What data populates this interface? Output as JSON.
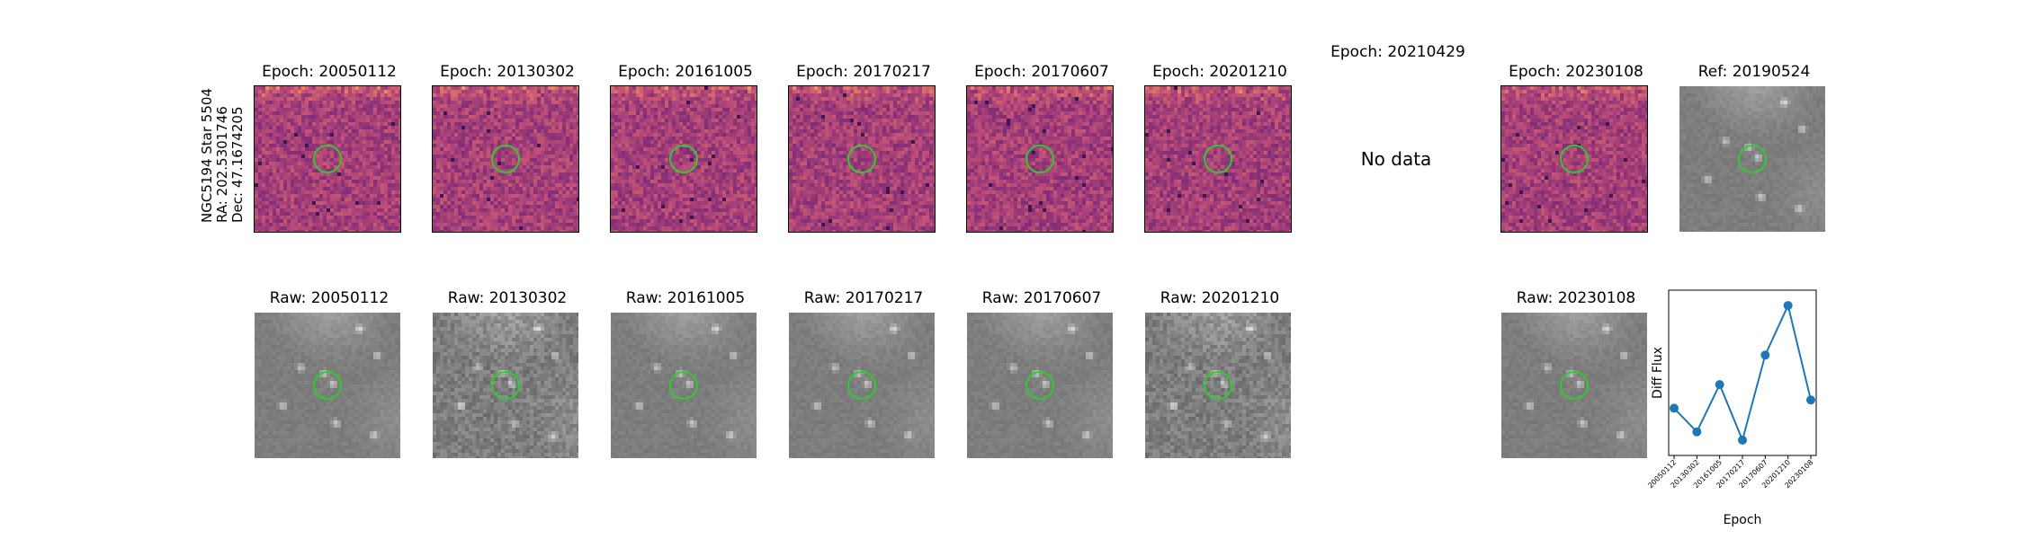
{
  "object": {
    "line1": "NGC5194 Star 5504",
    "line2": "RA: 202.5301746",
    "line3": "Dec: 47.1674205"
  },
  "diff_row": [
    {
      "label": "Epoch: 20050112",
      "kind": "diff"
    },
    {
      "label": "Epoch: 20130302",
      "kind": "diff"
    },
    {
      "label": "Epoch: 20161005",
      "kind": "diff"
    },
    {
      "label": "Epoch: 20170217",
      "kind": "diff"
    },
    {
      "label": "Epoch: 20170607",
      "kind": "diff"
    },
    {
      "label": "Epoch: 20201210",
      "kind": "diff"
    },
    {
      "label": "Epoch: 20210429",
      "kind": "nodata",
      "message": "No data"
    },
    {
      "label": "Epoch: 20230108",
      "kind": "diff"
    },
    {
      "label": "Ref: 20190524",
      "kind": "raw"
    }
  ],
  "raw_row": [
    {
      "label": "Raw: 20050112"
    },
    {
      "label": "Raw: 20130302"
    },
    {
      "label": "Raw: 20161005"
    },
    {
      "label": "Raw: 20170217"
    },
    {
      "label": "Raw: 20170607"
    },
    {
      "label": "Raw: 20201210"
    },
    {
      "label": "Raw: 20230108"
    }
  ],
  "colors": {
    "diff_base": "#b04a7c",
    "raw_base": "#8a8a8a",
    "aperture": "#2ecc2e",
    "series": "#1f77b4"
  },
  "chart_data": {
    "type": "line",
    "title": "",
    "xlabel": "Epoch",
    "ylabel": "Diff Flux",
    "categories": [
      "20050112",
      "20130302",
      "20161005",
      "20170217",
      "20170607",
      "20201210",
      "20230108"
    ],
    "series": [
      {
        "values": [
          0.3,
          0.1,
          0.5,
          0.03,
          0.75,
          1.17,
          0.37
        ]
      }
    ],
    "ylim": [
      -0.1,
      1.3
    ],
    "grid": false
  }
}
